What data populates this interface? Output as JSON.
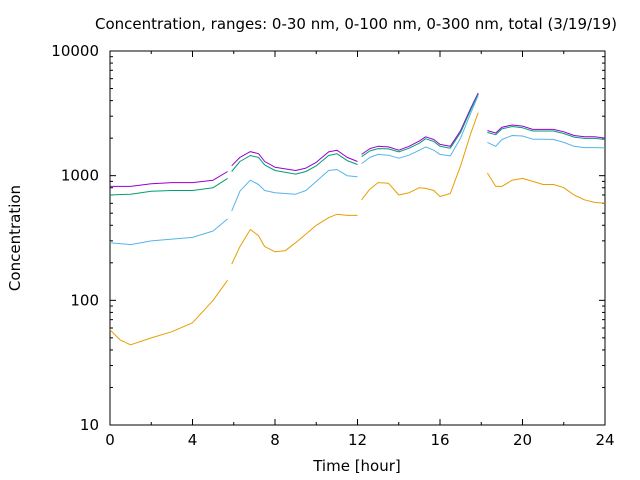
{
  "chart_data": {
    "type": "line",
    "title": "Concentration, ranges: 0-30 nm, 0-100 nm, 0-300 nm, total (3/19/19)",
    "xlabel": "Time [hour]",
    "ylabel": "Concentration",
    "xlim": [
      0,
      24
    ],
    "ylim": [
      10,
      10000
    ],
    "y_scale": "log",
    "x_ticks": [
      "0",
      "4",
      "8",
      "12",
      "16",
      "20",
      "24"
    ],
    "y_ticks": [
      "10",
      "100",
      "1000",
      "10000"
    ],
    "grid": false,
    "legend": "none",
    "series": [
      {
        "color": "#9400d3",
        "segments": [
          [
            [
              0,
              820
            ],
            [
              1,
              820
            ],
            [
              2,
              860
            ],
            [
              3,
              880
            ],
            [
              4,
              880
            ],
            [
              5,
              920
            ],
            [
              5.7,
              1080
            ]
          ],
          [
            [
              5.9,
              1200
            ],
            [
              6.3,
              1400
            ],
            [
              6.8,
              1560
            ],
            [
              7.2,
              1500
            ],
            [
              7.5,
              1300
            ],
            [
              8,
              1170
            ],
            [
              9,
              1100
            ],
            [
              9.5,
              1150
            ],
            [
              10,
              1280
            ],
            [
              10.6,
              1550
            ],
            [
              11,
              1600
            ],
            [
              11.5,
              1400
            ],
            [
              12,
              1300
            ]
          ],
          [
            [
              12.2,
              1480
            ],
            [
              12.6,
              1650
            ],
            [
              13,
              1720
            ],
            [
              13.5,
              1700
            ],
            [
              14,
              1600
            ],
            [
              14.5,
              1720
            ],
            [
              15,
              1900
            ],
            [
              15.3,
              2050
            ],
            [
              15.7,
              1950
            ],
            [
              16,
              1780
            ],
            [
              16.5,
              1720
            ],
            [
              17,
              2300
            ],
            [
              17.5,
              3500
            ],
            [
              17.85,
              4600
            ]
          ],
          [
            [
              18.3,
              2300
            ],
            [
              18.7,
              2200
            ],
            [
              19,
              2450
            ],
            [
              19.5,
              2550
            ],
            [
              20,
              2500
            ],
            [
              20.5,
              2350
            ],
            [
              21,
              2350
            ],
            [
              21.5,
              2350
            ],
            [
              22,
              2250
            ],
            [
              22.5,
              2100
            ],
            [
              23,
              2050
            ],
            [
              23.5,
              2050
            ],
            [
              24,
              2000
            ]
          ]
        ]
      },
      {
        "color": "#009e73",
        "segments": [
          [
            [
              0,
              700
            ],
            [
              1,
              710
            ],
            [
              2,
              750
            ],
            [
              3,
              760
            ],
            [
              4,
              760
            ],
            [
              5,
              800
            ],
            [
              5.7,
              950
            ]
          ],
          [
            [
              5.9,
              1080
            ],
            [
              6.3,
              1300
            ],
            [
              6.8,
              1450
            ],
            [
              7.2,
              1400
            ],
            [
              7.5,
              1220
            ],
            [
              8,
              1100
            ],
            [
              9,
              1030
            ],
            [
              9.5,
              1080
            ],
            [
              10,
              1200
            ],
            [
              10.6,
              1450
            ],
            [
              11,
              1500
            ],
            [
              11.5,
              1320
            ],
            [
              12,
              1230
            ]
          ],
          [
            [
              12.2,
              1420
            ],
            [
              12.6,
              1580
            ],
            [
              13,
              1650
            ],
            [
              13.5,
              1640
            ],
            [
              14,
              1550
            ],
            [
              14.5,
              1660
            ],
            [
              15,
              1820
            ],
            [
              15.3,
              1980
            ],
            [
              15.7,
              1880
            ],
            [
              16,
              1720
            ],
            [
              16.5,
              1660
            ],
            [
              17,
              2220
            ],
            [
              17.5,
              3400
            ],
            [
              17.85,
              4500
            ]
          ],
          [
            [
              18.3,
              2220
            ],
            [
              18.7,
              2130
            ],
            [
              19,
              2370
            ],
            [
              19.5,
              2480
            ],
            [
              20,
              2420
            ],
            [
              20.5,
              2280
            ],
            [
              21,
              2280
            ],
            [
              21.5,
              2280
            ],
            [
              22,
              2180
            ],
            [
              22.5,
              2040
            ],
            [
              23,
              1990
            ],
            [
              23.5,
              1990
            ],
            [
              24,
              1950
            ]
          ]
        ]
      },
      {
        "color": "#56b4e9",
        "segments": [
          [
            [
              0,
              290
            ],
            [
              1,
              280
            ],
            [
              2,
              300
            ],
            [
              3,
              310
            ],
            [
              4,
              320
            ],
            [
              5,
              360
            ],
            [
              5.7,
              450
            ]
          ],
          [
            [
              5.9,
              520
            ],
            [
              6.3,
              750
            ],
            [
              6.8,
              920
            ],
            [
              7.2,
              850
            ],
            [
              7.5,
              760
            ],
            [
              8,
              730
            ],
            [
              9,
              710
            ],
            [
              9.5,
              760
            ],
            [
              10,
              900
            ],
            [
              10.6,
              1100
            ],
            [
              11,
              1120
            ],
            [
              11.5,
              1000
            ],
            [
              12,
              980
            ]
          ],
          [
            [
              12.2,
              1250
            ],
            [
              12.6,
              1400
            ],
            [
              13,
              1480
            ],
            [
              13.5,
              1460
            ],
            [
              14,
              1380
            ],
            [
              14.5,
              1460
            ],
            [
              15,
              1600
            ],
            [
              15.3,
              1700
            ],
            [
              15.7,
              1600
            ],
            [
              16,
              1480
            ],
            [
              16.5,
              1440
            ],
            [
              17,
              2000
            ],
            [
              17.5,
              3200
            ],
            [
              17.85,
              4400
            ]
          ],
          [
            [
              18.3,
              1850
            ],
            [
              18.7,
              1720
            ],
            [
              19,
              1950
            ],
            [
              19.5,
              2100
            ],
            [
              20,
              2080
            ],
            [
              20.5,
              1960
            ],
            [
              21,
              1960
            ],
            [
              21.5,
              1950
            ],
            [
              22,
              1850
            ],
            [
              22.5,
              1720
            ],
            [
              23,
              1680
            ],
            [
              23.5,
              1680
            ],
            [
              24,
              1670
            ]
          ]
        ]
      },
      {
        "color": "#e69f00",
        "segments": [
          [
            [
              0,
              58
            ],
            [
              0.5,
              48
            ],
            [
              1,
              44
            ],
            [
              2,
              50
            ],
            [
              3,
              56
            ],
            [
              4,
              66
            ],
            [
              5,
              100
            ],
            [
              5.7,
              145
            ]
          ],
          [
            [
              5.9,
              195
            ],
            [
              6.3,
              270
            ],
            [
              6.8,
              370
            ],
            [
              7.2,
              330
            ],
            [
              7.5,
              270
            ],
            [
              8,
              245
            ],
            [
              8.5,
              250
            ],
            [
              9,
              290
            ],
            [
              9.5,
              340
            ],
            [
              10,
              400
            ],
            [
              10.6,
              460
            ],
            [
              11,
              490
            ],
            [
              11.5,
              480
            ],
            [
              12,
              480
            ]
          ],
          [
            [
              12.2,
              640
            ],
            [
              12.6,
              780
            ],
            [
              13,
              880
            ],
            [
              13.5,
              870
            ],
            [
              14,
              700
            ],
            [
              14.5,
              730
            ],
            [
              15,
              800
            ],
            [
              15.3,
              790
            ],
            [
              15.7,
              760
            ],
            [
              16,
              680
            ],
            [
              16.5,
              720
            ],
            [
              17,
              1200
            ],
            [
              17.5,
              2200
            ],
            [
              17.85,
              3200
            ]
          ],
          [
            [
              18.3,
              1050
            ],
            [
              18.7,
              820
            ],
            [
              19,
              820
            ],
            [
              19.5,
              920
            ],
            [
              20,
              950
            ],
            [
              20.5,
              900
            ],
            [
              21,
              850
            ],
            [
              21.5,
              850
            ],
            [
              22,
              800
            ],
            [
              22.5,
              700
            ],
            [
              23,
              640
            ],
            [
              23.5,
              610
            ],
            [
              24,
              600
            ]
          ]
        ]
      }
    ]
  }
}
